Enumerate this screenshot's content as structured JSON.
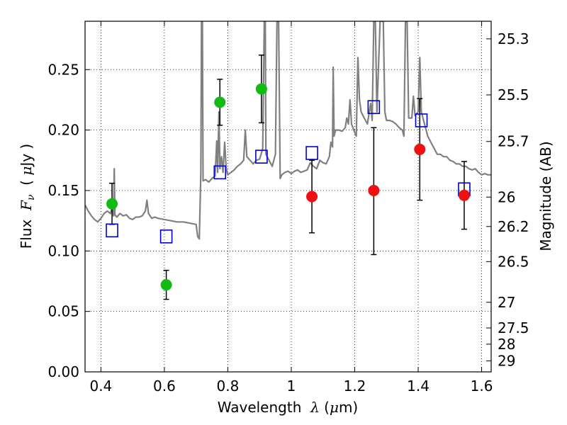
{
  "chart_data": {
    "type": "scatter",
    "xlabel": {
      "pre": "Wavelength  ",
      "sym": "λ",
      "post": " (",
      "unit_sym": "μ",
      "unit_rest": "m)"
    },
    "ylabel": {
      "pre": "Flux  ",
      "sym": "F",
      "sub": "ν",
      "post": "  ( ",
      "unit_sym": "μ",
      "unit_rest": "Jy )"
    },
    "ylabel_right": "Magnitude (AB)",
    "xlim": [
      0.35,
      1.63
    ],
    "ylim": [
      0.0,
      0.29
    ],
    "grid": true,
    "grid_style": "dotted",
    "x_ticks": [
      {
        "value": 0.4,
        "label": "0.4"
      },
      {
        "value": 0.6,
        "label": "0.6"
      },
      {
        "value": 0.8,
        "label": "0.8"
      },
      {
        "value": 1.0,
        "label": "1"
      },
      {
        "value": 1.2,
        "label": "1.2"
      },
      {
        "value": 1.4,
        "label": "1.4"
      },
      {
        "value": 1.6,
        "label": "1.6"
      }
    ],
    "y_ticks": [
      {
        "value": 0.0,
        "label": "0.00"
      },
      {
        "value": 0.05,
        "label": "0.05"
      },
      {
        "value": 0.1,
        "label": "0.10"
      },
      {
        "value": 0.15,
        "label": "0.15"
      },
      {
        "value": 0.2,
        "label": "0.20"
      },
      {
        "value": 0.25,
        "label": "0.25"
      }
    ],
    "right_ticks": [
      {
        "label": "25.3",
        "mag": 25.3
      },
      {
        "label": "25.5",
        "mag": 25.5
      },
      {
        "label": "25.7",
        "mag": 25.7
      },
      {
        "label": "26",
        "mag": 26.0
      },
      {
        "label": "26.2",
        "mag": 26.2
      },
      {
        "label": "26.5",
        "mag": 26.5
      },
      {
        "label": "27",
        "mag": 27.0
      },
      {
        "label": "27.5",
        "mag": 27.5
      },
      {
        "label": "28",
        "mag": 28.0
      },
      {
        "label": "29",
        "mag": 29.0
      }
    ],
    "colors": {
      "model": "#808080",
      "detection": "#11bb11",
      "upper": "#ee1111",
      "model_photometry": "#0000cc",
      "errorbar": "#000000"
    },
    "model_spectrum": [
      [
        0.35,
        0.138
      ],
      [
        0.36,
        0.133
      ],
      [
        0.37,
        0.129
      ],
      [
        0.38,
        0.126
      ],
      [
        0.39,
        0.124
      ],
      [
        0.4,
        0.127
      ],
      [
        0.41,
        0.131
      ],
      [
        0.42,
        0.133
      ],
      [
        0.43,
        0.131
      ],
      [
        0.435,
        0.136
      ],
      [
        0.44,
        0.129
      ],
      [
        0.442,
        0.168
      ],
      [
        0.444,
        0.13
      ],
      [
        0.45,
        0.128
      ],
      [
        0.46,
        0.131
      ],
      [
        0.47,
        0.129
      ],
      [
        0.48,
        0.13
      ],
      [
        0.49,
        0.127
      ],
      [
        0.5,
        0.126
      ],
      [
        0.51,
        0.128
      ],
      [
        0.52,
        0.128
      ],
      [
        0.53,
        0.129
      ],
      [
        0.54,
        0.133
      ],
      [
        0.545,
        0.142
      ],
      [
        0.55,
        0.131
      ],
      [
        0.56,
        0.127
      ],
      [
        0.57,
        0.128
      ],
      [
        0.58,
        0.127
      ],
      [
        0.6,
        0.126
      ],
      [
        0.62,
        0.125
      ],
      [
        0.64,
        0.124
      ],
      [
        0.66,
        0.124
      ],
      [
        0.68,
        0.123
      ],
      [
        0.7,
        0.122
      ],
      [
        0.705,
        0.112
      ],
      [
        0.71,
        0.11
      ],
      [
        0.715,
        0.165
      ],
      [
        0.717,
        0.29
      ],
      [
        0.72,
        0.29
      ],
      [
        0.722,
        0.158
      ],
      [
        0.73,
        0.159
      ],
      [
        0.74,
        0.157
      ],
      [
        0.75,
        0.16
      ],
      [
        0.76,
        0.162
      ],
      [
        0.765,
        0.191
      ],
      [
        0.768,
        0.165
      ],
      [
        0.772,
        0.215
      ],
      [
        0.775,
        0.168
      ],
      [
        0.78,
        0.178
      ],
      [
        0.785,
        0.165
      ],
      [
        0.79,
        0.19
      ],
      [
        0.795,
        0.168
      ],
      [
        0.8,
        0.163
      ],
      [
        0.81,
        0.165
      ],
      [
        0.82,
        0.167
      ],
      [
        0.83,
        0.17
      ],
      [
        0.84,
        0.172
      ],
      [
        0.85,
        0.175
      ],
      [
        0.855,
        0.2
      ],
      [
        0.86,
        0.178
      ],
      [
        0.87,
        0.175
      ],
      [
        0.88,
        0.172
      ],
      [
        0.89,
        0.175
      ],
      [
        0.9,
        0.176
      ],
      [
        0.905,
        0.18
      ],
      [
        0.91,
        0.185
      ],
      [
        0.915,
        0.29
      ],
      [
        0.918,
        0.29
      ],
      [
        0.92,
        0.18
      ],
      [
        0.93,
        0.175
      ],
      [
        0.94,
        0.17
      ],
      [
        0.95,
        0.18
      ],
      [
        0.955,
        0.29
      ],
      [
        0.96,
        0.29
      ],
      [
        0.965,
        0.16
      ],
      [
        0.97,
        0.163
      ],
      [
        0.98,
        0.165
      ],
      [
        0.99,
        0.166
      ],
      [
        1.0,
        0.164
      ],
      [
        1.01,
        0.166
      ],
      [
        1.02,
        0.167
      ],
      [
        1.03,
        0.165
      ],
      [
        1.04,
        0.166
      ],
      [
        1.05,
        0.167
      ],
      [
        1.06,
        0.173
      ],
      [
        1.07,
        0.17
      ],
      [
        1.08,
        0.168
      ],
      [
        1.09,
        0.175
      ],
      [
        1.1,
        0.173
      ],
      [
        1.11,
        0.172
      ],
      [
        1.12,
        0.178
      ],
      [
        1.125,
        0.19
      ],
      [
        1.13,
        0.186
      ],
      [
        1.132,
        0.252
      ],
      [
        1.135,
        0.195
      ],
      [
        1.14,
        0.2
      ],
      [
        1.15,
        0.2
      ],
      [
        1.16,
        0.199
      ],
      [
        1.17,
        0.202
      ],
      [
        1.175,
        0.21
      ],
      [
        1.18,
        0.205
      ],
      [
        1.185,
        0.225
      ],
      [
        1.19,
        0.205
      ],
      [
        1.2,
        0.198
      ],
      [
        1.205,
        0.195
      ],
      [
        1.21,
        0.26
      ],
      [
        1.215,
        0.225
      ],
      [
        1.22,
        0.215
      ],
      [
        1.23,
        0.21
      ],
      [
        1.24,
        0.205
      ],
      [
        1.25,
        0.222
      ],
      [
        1.255,
        0.208
      ],
      [
        1.26,
        0.29
      ],
      [
        1.265,
        0.29
      ],
      [
        1.27,
        0.215
      ],
      [
        1.28,
        0.29
      ],
      [
        1.29,
        0.29
      ],
      [
        1.295,
        0.215
      ],
      [
        1.3,
        0.208
      ],
      [
        1.31,
        0.208
      ],
      [
        1.32,
        0.207
      ],
      [
        1.33,
        0.205
      ],
      [
        1.34,
        0.202
      ],
      [
        1.35,
        0.2
      ],
      [
        1.355,
        0.195
      ],
      [
        1.36,
        0.29
      ],
      [
        1.365,
        0.29
      ],
      [
        1.37,
        0.21
      ],
      [
        1.38,
        0.21
      ],
      [
        1.385,
        0.228
      ],
      [
        1.39,
        0.212
      ],
      [
        1.4,
        0.215
      ],
      [
        1.405,
        0.26
      ],
      [
        1.41,
        0.215
      ],
      [
        1.42,
        0.205
      ],
      [
        1.43,
        0.195
      ],
      [
        1.44,
        0.19
      ],
      [
        1.45,
        0.185
      ],
      [
        1.46,
        0.18
      ],
      [
        1.47,
        0.18
      ],
      [
        1.48,
        0.178
      ],
      [
        1.49,
        0.178
      ],
      [
        1.5,
        0.175
      ],
      [
        1.51,
        0.174
      ],
      [
        1.52,
        0.172
      ],
      [
        1.53,
        0.172
      ],
      [
        1.54,
        0.17
      ],
      [
        1.55,
        0.17
      ],
      [
        1.56,
        0.168
      ],
      [
        1.57,
        0.167
      ],
      [
        1.58,
        0.168
      ],
      [
        1.59,
        0.165
      ],
      [
        1.6,
        0.163
      ],
      [
        1.61,
        0.164
      ],
      [
        1.62,
        0.163
      ],
      [
        1.63,
        0.163
      ]
    ],
    "detections": [
      {
        "x": 0.435,
        "y": 0.139,
        "err_lo": 0.122,
        "err_hi": 0.156
      },
      {
        "x": 0.606,
        "y": 0.072,
        "err_lo": 0.06,
        "err_hi": 0.084
      },
      {
        "x": 0.775,
        "y": 0.223,
        "err_lo": 0.204,
        "err_hi": 0.242
      },
      {
        "x": 0.906,
        "y": 0.234,
        "err_lo": 0.206,
        "err_hi": 0.262
      }
    ],
    "upper_limits": [
      {
        "x": 1.065,
        "y": 0.145,
        "err_lo": 0.115,
        "err_hi": 0.175
      },
      {
        "x": 1.26,
        "y": 0.15,
        "err_lo": 0.097,
        "err_hi": 0.202
      },
      {
        "x": 1.405,
        "y": 0.184,
        "err_lo": 0.142,
        "err_hi": 0.226
      },
      {
        "x": 1.545,
        "y": 0.146,
        "err_lo": 0.118,
        "err_hi": 0.174
      }
    ],
    "model_photometry": [
      {
        "x": 0.435,
        "y": 0.117
      },
      {
        "x": 0.606,
        "y": 0.112
      },
      {
        "x": 0.775,
        "y": 0.165
      },
      {
        "x": 0.906,
        "y": 0.178
      },
      {
        "x": 1.065,
        "y": 0.181
      },
      {
        "x": 1.26,
        "y": 0.219
      },
      {
        "x": 1.41,
        "y": 0.208
      },
      {
        "x": 1.545,
        "y": 0.151
      }
    ]
  }
}
